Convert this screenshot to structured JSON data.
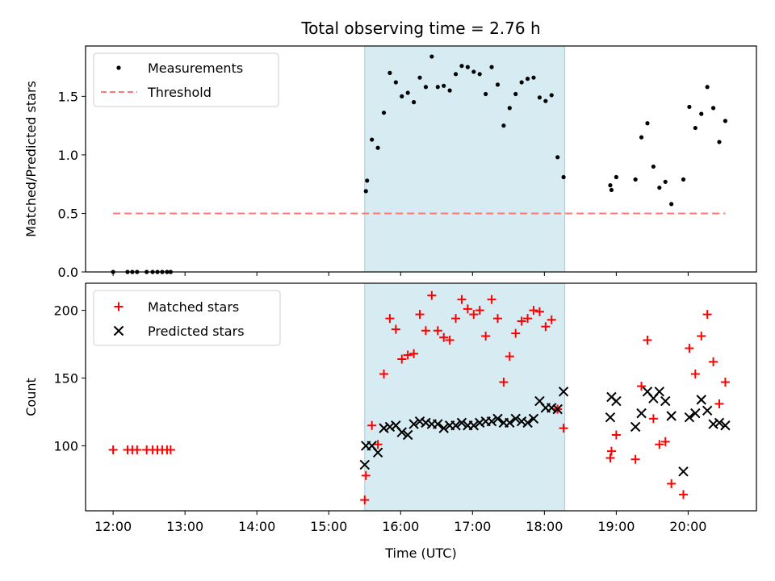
{
  "chart_data": [
    {
      "type": "scatter",
      "title": "Total observing time = 2.76 h",
      "xlabel": "",
      "ylabel": "Matched/Predicted stars",
      "xlim": [
        "11:37",
        "20:57"
      ],
      "ylim": [
        0,
        1.93
      ],
      "x_ticks": [
        "12:00",
        "13:00",
        "14:00",
        "15:00",
        "16:00",
        "17:00",
        "18:00",
        "19:00",
        "20:00"
      ],
      "x_tick_labels_visible": false,
      "y_ticks": [
        "0.0",
        "0.5",
        "1.0",
        "1.5"
      ],
      "grid": false,
      "legend_position": "upper-left",
      "shaded_region": {
        "start": "15:30",
        "end": "18:17",
        "color": "#add8e6"
      },
      "series": [
        {
          "name": "Measurements",
          "marker": "dot",
          "color": "#000000",
          "points": [
            [
              "12:00",
              0
            ],
            [
              "12:12",
              0
            ],
            [
              "12:16",
              0
            ],
            [
              "12:20",
              0
            ],
            [
              "12:28",
              0
            ],
            [
              "12:33",
              0
            ],
            [
              "12:37",
              0
            ],
            [
              "12:41",
              0
            ],
            [
              "12:45",
              0
            ],
            [
              "12:48",
              0
            ],
            [
              "15:31",
              0.69
            ],
            [
              "15:32",
              0.78
            ],
            [
              "15:36",
              1.13
            ],
            [
              "15:41",
              1.06
            ],
            [
              "15:46",
              1.36
            ],
            [
              "15:51",
              1.7
            ],
            [
              "15:56",
              1.62
            ],
            [
              "16:01",
              1.5
            ],
            [
              "16:06",
              1.53
            ],
            [
              "16:11",
              1.45
            ],
            [
              "16:16",
              1.66
            ],
            [
              "16:21",
              1.58
            ],
            [
              "16:26",
              1.84
            ],
            [
              "16:31",
              1.58
            ],
            [
              "16:36",
              1.59
            ],
            [
              "16:41",
              1.55
            ],
            [
              "16:46",
              1.69
            ],
            [
              "16:51",
              1.76
            ],
            [
              "16:56",
              1.75
            ],
            [
              "17:01",
              1.71
            ],
            [
              "17:06",
              1.69
            ],
            [
              "17:11",
              1.52
            ],
            [
              "17:16",
              1.75
            ],
            [
              "17:21",
              1.6
            ],
            [
              "17:26",
              1.25
            ],
            [
              "17:31",
              1.4
            ],
            [
              "17:36",
              1.52
            ],
            [
              "17:41",
              1.62
            ],
            [
              "17:46",
              1.65
            ],
            [
              "17:51",
              1.66
            ],
            [
              "17:56",
              1.49
            ],
            [
              "18:01",
              1.46
            ],
            [
              "18:06",
              1.51
            ],
            [
              "18:11",
              0.98
            ],
            [
              "18:16",
              0.81
            ],
            [
              "18:55",
              0.74
            ],
            [
              "18:56",
              0.7
            ],
            [
              "19:00",
              0.81
            ],
            [
              "19:16",
              0.79
            ],
            [
              "19:21",
              1.15
            ],
            [
              "19:26",
              1.27
            ],
            [
              "19:31",
              0.9
            ],
            [
              "19:36",
              0.72
            ],
            [
              "19:41",
              0.77
            ],
            [
              "19:46",
              0.58
            ],
            [
              "19:56",
              0.79
            ],
            [
              "20:01",
              1.41
            ],
            [
              "20:06",
              1.23
            ],
            [
              "20:11",
              1.35
            ],
            [
              "20:16",
              1.58
            ],
            [
              "20:21",
              1.4
            ],
            [
              "20:26",
              1.11
            ],
            [
              "20:31",
              1.29
            ]
          ]
        },
        {
          "name": "Threshold",
          "style": "dashed-line",
          "color": "#ff7777",
          "points": [
            [
              "12:00",
              0.5
            ],
            [
              "20:31",
              0.5
            ]
          ]
        }
      ]
    },
    {
      "type": "scatter",
      "title": "",
      "xlabel": "Time (UTC)",
      "ylabel": "Count",
      "xlim": [
        "11:37",
        "20:57"
      ],
      "ylim": [
        52,
        220
      ],
      "x_ticks": [
        "12:00",
        "13:00",
        "14:00",
        "15:00",
        "16:00",
        "17:00",
        "18:00",
        "19:00",
        "20:00"
      ],
      "y_ticks": [
        "100",
        "150",
        "200"
      ],
      "grid": false,
      "legend_position": "upper-left",
      "shaded_region": {
        "start": "15:30",
        "end": "18:17",
        "color": "#add8e6"
      },
      "series": [
        {
          "name": "Matched stars",
          "marker": "plus",
          "color": "#ff0000",
          "points": [
            [
              "12:00",
              97
            ],
            [
              "12:12",
              97
            ],
            [
              "12:16",
              97
            ],
            [
              "12:20",
              97
            ],
            [
              "12:28",
              97
            ],
            [
              "12:33",
              97
            ],
            [
              "12:37",
              97
            ],
            [
              "12:41",
              97
            ],
            [
              "12:45",
              97
            ],
            [
              "12:48",
              97
            ],
            [
              "15:30",
              60
            ],
            [
              "15:31",
              78
            ],
            [
              "15:36",
              115
            ],
            [
              "15:41",
              101
            ],
            [
              "15:46",
              153
            ],
            [
              "15:51",
              194
            ],
            [
              "15:56",
              186
            ],
            [
              "16:01",
              164
            ],
            [
              "16:06",
              167
            ],
            [
              "16:11",
              168
            ],
            [
              "16:16",
              197
            ],
            [
              "16:21",
              185
            ],
            [
              "16:26",
              211
            ],
            [
              "16:31",
              185
            ],
            [
              "16:36",
              180
            ],
            [
              "16:41",
              178
            ],
            [
              "16:46",
              194
            ],
            [
              "16:51",
              208
            ],
            [
              "16:56",
              201
            ],
            [
              "17:01",
              197
            ],
            [
              "17:06",
              200
            ],
            [
              "17:11",
              181
            ],
            [
              "17:16",
              208
            ],
            [
              "17:21",
              194
            ],
            [
              "17:26",
              147
            ],
            [
              "17:31",
              166
            ],
            [
              "17:36",
              183
            ],
            [
              "17:41",
              192
            ],
            [
              "17:46",
              194
            ],
            [
              "17:51",
              200
            ],
            [
              "17:56",
              199
            ],
            [
              "18:01",
              188
            ],
            [
              "18:06",
              193
            ],
            [
              "18:11",
              127
            ],
            [
              "18:16",
              113
            ],
            [
              "18:55",
              91
            ],
            [
              "18:56",
              96
            ],
            [
              "19:00",
              108
            ],
            [
              "19:16",
              90
            ],
            [
              "19:21",
              144
            ],
            [
              "19:26",
              178
            ],
            [
              "19:31",
              120
            ],
            [
              "19:36",
              101
            ],
            [
              "19:41",
              103
            ],
            [
              "19:46",
              72
            ],
            [
              "19:56",
              64
            ],
            [
              "20:01",
              172
            ],
            [
              "20:06",
              153
            ],
            [
              "20:11",
              181
            ],
            [
              "20:16",
              197
            ],
            [
              "20:21",
              162
            ],
            [
              "20:26",
              131
            ],
            [
              "20:31",
              147
            ]
          ]
        },
        {
          "name": "Predicted stars",
          "marker": "x",
          "color": "#000000",
          "points": [
            [
              "15:30",
              86
            ],
            [
              "15:31",
              100
            ],
            [
              "15:36",
              100
            ],
            [
              "15:41",
              95
            ],
            [
              "15:46",
              113
            ],
            [
              "15:51",
              114
            ],
            [
              "15:56",
              115
            ],
            [
              "16:01",
              110
            ],
            [
              "16:06",
              108
            ],
            [
              "16:11",
              116
            ],
            [
              "16:16",
              118
            ],
            [
              "16:21",
              117
            ],
            [
              "16:26",
              116
            ],
            [
              "16:31",
              116
            ],
            [
              "16:36",
              113
            ],
            [
              "16:41",
              115
            ],
            [
              "16:46",
              115
            ],
            [
              "16:51",
              117
            ],
            [
              "16:56",
              115
            ],
            [
              "17:01",
              115
            ],
            [
              "17:06",
              117
            ],
            [
              "17:11",
              118
            ],
            [
              "17:16",
              118
            ],
            [
              "17:21",
              120
            ],
            [
              "17:26",
              117
            ],
            [
              "17:31",
              117
            ],
            [
              "17:36",
              120
            ],
            [
              "17:41",
              118
            ],
            [
              "17:46",
              117
            ],
            [
              "17:51",
              120
            ],
            [
              "17:56",
              133
            ],
            [
              "18:01",
              128
            ],
            [
              "18:06",
              128
            ],
            [
              "18:11",
              127
            ],
            [
              "18:16",
              140
            ],
            [
              "18:55",
              121
            ],
            [
              "18:56",
              136
            ],
            [
              "19:00",
              133
            ],
            [
              "19:16",
              114
            ],
            [
              "19:21",
              124
            ],
            [
              "19:26",
              140
            ],
            [
              "19:31",
              135
            ],
            [
              "19:36",
              140
            ],
            [
              "19:41",
              133
            ],
            [
              "19:46",
              122
            ],
            [
              "19:56",
              81
            ],
            [
              "20:01",
              121
            ],
            [
              "20:06",
              124
            ],
            [
              "20:11",
              134
            ],
            [
              "20:16",
              126
            ],
            [
              "20:21",
              116
            ],
            [
              "20:26",
              117
            ],
            [
              "20:31",
              115
            ]
          ]
        }
      ]
    }
  ]
}
